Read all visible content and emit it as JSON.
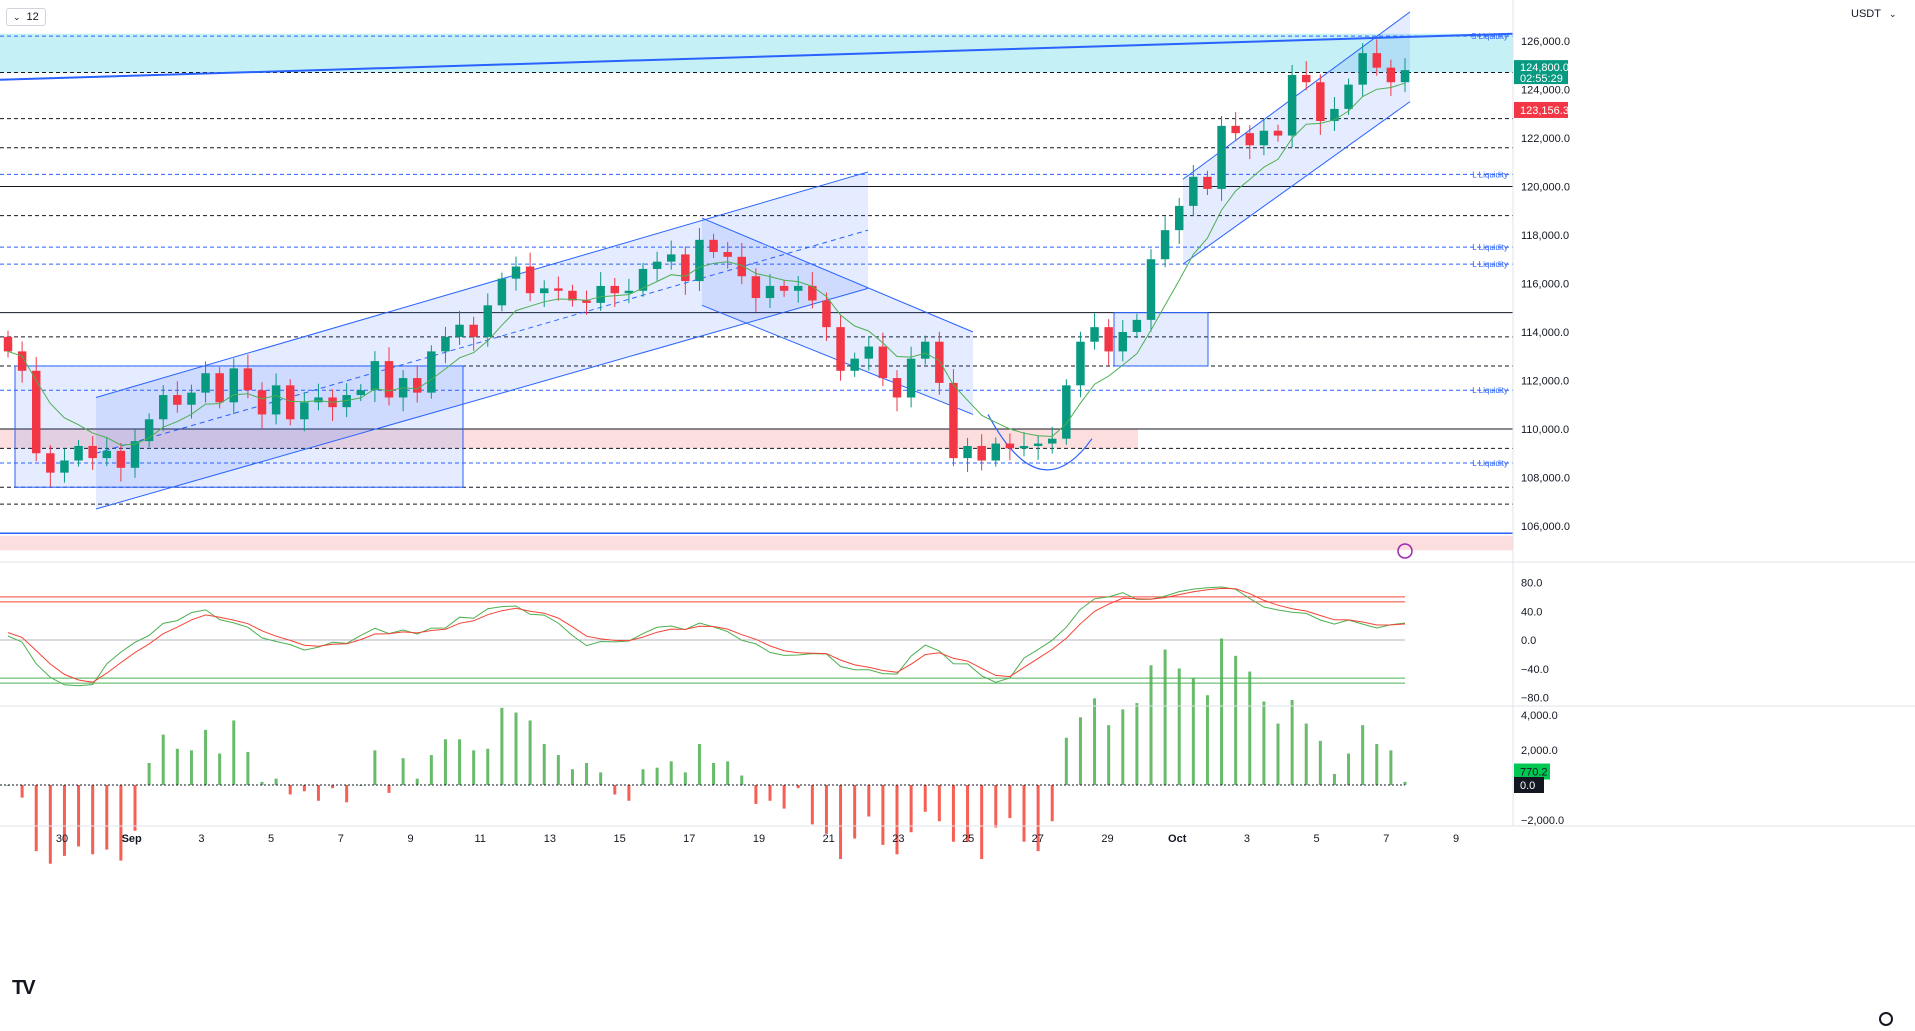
{
  "header": {
    "interval": "12",
    "interval_icon": "chevron-down-icon",
    "currency": "USDT",
    "currency_icon": "chevron-down-icon"
  },
  "logo": {
    "text": "TV"
  },
  "price_axis": {
    "labels": [
      "126,000.0",
      "124,000.0",
      "122,000.0",
      "120,000.0",
      "118,000.0",
      "116,000.0",
      "114,000.0",
      "112,000.0",
      "110,000.0",
      "108,000.0",
      "106,000.0"
    ],
    "values": [
      126000,
      124000,
      122000,
      120000,
      118000,
      116000,
      114000,
      112000,
      110000,
      108000,
      106000
    ]
  },
  "tags": {
    "current_price": "124,800.0",
    "countdown": "02:55:29",
    "stop_level": "123,156.3"
  },
  "liquidity_labels": [
    {
      "text": "S Liquidity",
      "price": 126200
    },
    {
      "text": "L Liquidity",
      "price": 120500
    },
    {
      "text": "L Liquidity",
      "price": 117500
    },
    {
      "text": "L Liquidity",
      "price": 116800
    },
    {
      "text": "L Liquidity",
      "price": 111600
    },
    {
      "text": "L Liquidity",
      "price": 108600
    }
  ],
  "colors": {
    "up": "#26a69a",
    "down": "#ef5350",
    "green_candle": "#089981",
    "red_candle": "#f23645",
    "blue_line": "#2962ff",
    "supply_zone": "#b2ebf2",
    "demand_zone": "#fbd6d6",
    "osc_green": "#4caf50",
    "osc_red": "#f44336"
  },
  "oscillator_axis": {
    "labels": [
      "80.0",
      "40.0",
      "0.0",
      "−40.0",
      "−80.0"
    ],
    "values": [
      80,
      40,
      0,
      -40,
      -80
    ]
  },
  "histogram_axis": {
    "labels": [
      "4,000.0",
      "2,000.0",
      "0.0",
      "−2,000.0"
    ],
    "values": [
      4000,
      2000,
      0,
      -2000
    ],
    "current_value": "770.2",
    "zero_value": "0.0"
  },
  "time_axis": {
    "labels": [
      "30",
      "Sep",
      "3",
      "5",
      "7",
      "9",
      "11",
      "13",
      "15",
      "17",
      "19",
      "21",
      "23",
      "25",
      "27",
      "29",
      "Oct",
      "3",
      "5",
      "7",
      "9"
    ]
  },
  "settings_icon": "gear-icon",
  "alert_icon": "lightning-icon",
  "chart_data": {
    "type": "candlestick",
    "symbol_currency": "USDT",
    "interval": "12",
    "ylim": [
      105000,
      127500
    ],
    "x_labels": [
      "30",
      "Sep",
      "3",
      "5",
      "7",
      "9",
      "11",
      "13",
      "15",
      "17",
      "19",
      "21",
      "23",
      "25",
      "27",
      "29",
      "Oct",
      "3",
      "5",
      "7",
      "9"
    ],
    "series": [
      {
        "name": "close",
        "values": [
          113200,
          112400,
          109000,
          108200,
          108700,
          109300,
          108800,
          109100,
          108400,
          109500,
          110400,
          111400,
          111000,
          111500,
          112300,
          111100,
          112500,
          111600,
          110600,
          111800,
          110400,
          111100,
          111300,
          110900,
          111400,
          111600,
          112800,
          111300,
          112100,
          111500,
          113200,
          113800,
          114300,
          113800,
          115100,
          116200,
          116700,
          115600,
          115800,
          115700,
          115300,
          115200,
          115900,
          115600,
          115700,
          116600,
          116900,
          117200,
          116100,
          117800,
          117300,
          117100,
          116300,
          115400,
          115900,
          115700,
          115900,
          115300,
          114200,
          112400,
          112900,
          113400,
          112100,
          111300,
          112900,
          113600,
          111900,
          108800,
          109300,
          108700,
          109400,
          109200,
          109300,
          109400,
          109600,
          111800,
          113600,
          114200,
          113200,
          114000,
          114500,
          117000,
          118200,
          119200,
          120400,
          119900,
          122500,
          122200,
          121700,
          122300,
          122100,
          124600,
          124300,
          122700,
          123200,
          124200,
          125500,
          124900,
          124300,
          124800
        ]
      },
      {
        "name": "open",
        "values": [
          113800,
          113200,
          112400,
          109000,
          108200,
          108700,
          109300,
          108800,
          109100,
          108400,
          109500,
          110400,
          111400,
          111000,
          111500,
          112300,
          111100,
          112500,
          111600,
          110600,
          111800,
          110400,
          111100,
          111300,
          110900,
          111400,
          111600,
          112800,
          111300,
          112100,
          111500,
          113200,
          113800,
          114300,
          113800,
          115100,
          116200,
          116700,
          115600,
          115800,
          115700,
          115300,
          115200,
          115900,
          115600,
          115700,
          116600,
          116900,
          117200,
          116100,
          117800,
          117300,
          117100,
          116300,
          115400,
          115900,
          115700,
          115900,
          115300,
          114200,
          112400,
          112900,
          113400,
          112100,
          111300,
          112900,
          113600,
          111900,
          108800,
          109300,
          108700,
          109400,
          109200,
          109300,
          109400,
          109600,
          111800,
          113600,
          114200,
          113200,
          114000,
          114500,
          117000,
          118200,
          119200,
          120400,
          119900,
          122500,
          122200,
          121700,
          122300,
          122100,
          124600,
          124300,
          122700,
          123200,
          124200,
          125500,
          124900,
          124300
        ]
      }
    ],
    "oscillator": {
      "ylim": [
        -100,
        100
      ],
      "levels": [
        60,
        53,
        -53,
        -60
      ]
    },
    "histogram": {
      "ylim": [
        -3000,
        4300
      ],
      "last": 770.2
    }
  }
}
